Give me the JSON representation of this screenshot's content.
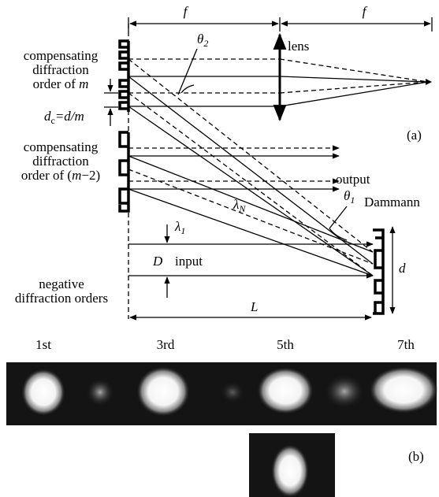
{
  "panel_a": {
    "focal_left": "f",
    "focal_right": "f",
    "lens": "lens",
    "theta2": {
      "symbol": "θ",
      "sub": "2"
    },
    "order_m": {
      "line1": "compensating",
      "line2": "diffraction",
      "prefix": "order of ",
      "var": "m"
    },
    "dc": {
      "symbol": "d",
      "sub": "c",
      "rest": "=d/m"
    },
    "panel_label": "(a)",
    "order_m2": {
      "line1": "compensating",
      "line2": "diffraction",
      "prefix": "order of (",
      "var": "m",
      "rest": "−2)"
    },
    "output": "output",
    "theta1": {
      "symbol": "θ",
      "sub": "1"
    },
    "dammann": "Dammann",
    "lambdaN": {
      "symbol": "λ",
      "sub": "N"
    },
    "lambda1": {
      "symbol": "λ",
      "sub": "1"
    },
    "D": "D",
    "input": "input",
    "d": "d",
    "negative": {
      "line1": "negative",
      "line2": "diffraction orders"
    },
    "L": "L"
  },
  "panel_b": {
    "orders": [
      "1st",
      "3rd",
      "5th",
      "7th"
    ],
    "panel_label": "(b)"
  }
}
